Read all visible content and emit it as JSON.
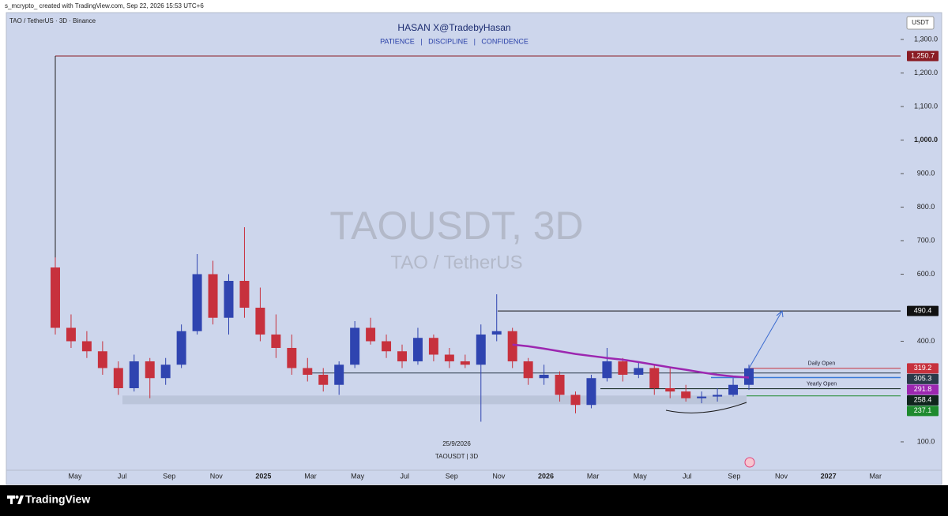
{
  "header": {
    "credit": "s_mcrypto_ created with TradingView.com, Sep 22, 2026 15:53 UTC+6"
  },
  "brand": "TradingView",
  "chart_data": {
    "type": "candlestick",
    "symbol": "TAO / TetherUS · 3D · Binance",
    "title": "HASAN X@TradebyHasan",
    "subtitle": "PATIENCE   |   DISCIPLINE   |   CONFIDENCE",
    "watermark": "TAOUSDT, 3D",
    "watermark_sub": "TAO / TetherUS",
    "currency": "USDT",
    "date_label": "25/9/2026",
    "symbol_label": "TAOUSDT | 3D",
    "open": [
      620,
      440,
      400,
      370,
      320,
      260,
      340,
      290,
      330,
      430,
      600,
      470,
      580,
      500,
      420,
      380,
      320,
      300,
      270,
      330,
      440,
      400,
      370,
      340,
      410,
      360,
      340,
      330,
      420,
      430,
      340,
      290,
      300,
      240,
      210,
      290,
      340,
      300,
      320,
      260,
      250,
      230,
      235,
      240,
      270
    ],
    "high": [
      650,
      480,
      430,
      400,
      340,
      360,
      350,
      350,
      450,
      660,
      640,
      600,
      740,
      560,
      480,
      420,
      350,
      320,
      340,
      460,
      470,
      420,
      390,
      440,
      420,
      380,
      360,
      450,
      540,
      440,
      350,
      330,
      310,
      250,
      300,
      380,
      350,
      340,
      330,
      320,
      270,
      250,
      260,
      290,
      330
    ],
    "low": [
      420,
      380,
      350,
      300,
      240,
      250,
      230,
      270,
      320,
      420,
      450,
      420,
      470,
      400,
      350,
      300,
      280,
      250,
      240,
      320,
      390,
      350,
      320,
      330,
      340,
      320,
      320,
      160,
      400,
      320,
      270,
      270,
      220,
      185,
      200,
      280,
      280,
      290,
      240,
      230,
      220,
      215,
      220,
      235,
      255
    ],
    "close": [
      440,
      400,
      370,
      320,
      260,
      340,
      290,
      330,
      430,
      600,
      470,
      580,
      500,
      420,
      380,
      320,
      300,
      270,
      330,
      440,
      400,
      370,
      340,
      410,
      360,
      340,
      330,
      420,
      430,
      340,
      290,
      300,
      240,
      210,
      290,
      340,
      300,
      320,
      260,
      250,
      230,
      235,
      240,
      270,
      319.2
    ],
    "up_color": "#2f44b0",
    "down_color": "#c7313d",
    "ma": {
      "color": "#9c27b0",
      "values": [
        null,
        null,
        null,
        null,
        null,
        null,
        null,
        null,
        null,
        null,
        null,
        null,
        null,
        null,
        null,
        null,
        null,
        null,
        null,
        null,
        null,
        null,
        null,
        null,
        null,
        null,
        null,
        null,
        null,
        390,
        385,
        378,
        370,
        362,
        356,
        350,
        345,
        338,
        330,
        322,
        315,
        307,
        300,
        295,
        291.8
      ]
    },
    "zone": {
      "values": [
        212,
        238
      ],
      "color": "#b7c0d6"
    },
    "ylim": [
      17.6,
      1380
    ],
    "yticks": [
      {
        "value": 1300,
        "label": "1,300.0"
      },
      {
        "value": 1200,
        "label": "1,200.0"
      },
      {
        "value": 1100,
        "label": "1,100.0"
      },
      {
        "value": 1000,
        "label": "1,000.0"
      },
      {
        "value": 900,
        "label": "900.0"
      },
      {
        "value": 800,
        "label": "800.0"
      },
      {
        "value": 700,
        "label": "700.0"
      },
      {
        "value": 600,
        "label": "600.0"
      },
      {
        "value": 400,
        "label": "400.0"
      },
      {
        "value": 100,
        "label": "100.0"
      }
    ],
    "xticks": [
      "May",
      "Jul",
      "Sep",
      "Nov",
      "2025",
      "Mar",
      "May",
      "Jul",
      "Sep",
      "Nov",
      "2026",
      "Mar",
      "May",
      "Jul",
      "Sep",
      "Nov",
      "2027",
      "Mar"
    ],
    "levels": [
      {
        "value": 1250.7,
        "label": "1,250.7",
        "color": "#8a1c24"
      },
      {
        "value": 490.4,
        "label": "490.4",
        "color": "#111111"
      },
      {
        "value": 319.2,
        "label": "319.2",
        "color": "#c7313d",
        "note": "Daily Open"
      },
      {
        "value": 305.3,
        "label": "305.3",
        "color": "#2b3a4a"
      },
      {
        "value": 291.8,
        "label": "291.8",
        "color": "#9c27b0"
      },
      {
        "value": 258.4,
        "label": "258.4",
        "color": "#10251c",
        "note": "Yearly Open"
      },
      {
        "value": 237.1,
        "label": "237.1",
        "color": "#1e8a2e"
      }
    ]
  }
}
